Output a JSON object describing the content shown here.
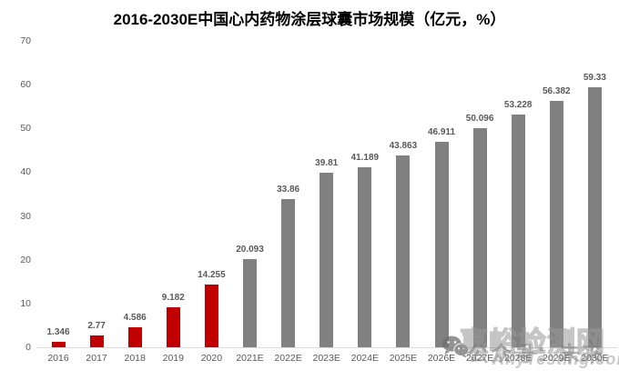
{
  "title": "2016-2030E中国心内药物涂层球囊市场规模（亿元，%）",
  "chart_data": {
    "type": "bar",
    "title": "2016-2030E中国心内药物涂层球囊市场规模（亿元，%）",
    "categories": [
      "2016",
      "2017",
      "2018",
      "2019",
      "2020",
      "2021E",
      "2022E",
      "2023E",
      "2024E",
      "2025E",
      "2026E",
      "2027E",
      "2028E",
      "2029E",
      "2030E"
    ],
    "values": [
      1.346,
      2.77,
      4.586,
      9.182,
      14.255,
      20.093,
      33.86,
      39.81,
      41.189,
      43.863,
      46.911,
      50.096,
      53.228,
      56.382,
      59.33
    ],
    "value_labels": [
      "1.346",
      "2.77",
      "4.586",
      "9.182",
      "14.255",
      "20.093",
      "33.86",
      "39.81",
      "41.189",
      "43.863",
      "46.911",
      "50.096",
      "53.228",
      "56.382",
      "59.33"
    ],
    "xlabel": "",
    "ylabel": "",
    "ylim": [
      0,
      70
    ],
    "yticks": [
      0,
      10,
      20,
      30,
      40,
      50,
      60,
      70
    ],
    "grid": false,
    "legend": "none",
    "actual_color": "#C00000",
    "forecast_color": "#808080",
    "forecast_start_index": 5,
    "label_color": "#595959",
    "axis_line_color": "#D9D9D9"
  },
  "watermarks": {
    "site_name": "嘉峪检测网",
    "site_url": "AnyTesting.com",
    "wechat_label": "公众号：未来",
    "wechat_icon": "wechat-icon"
  }
}
